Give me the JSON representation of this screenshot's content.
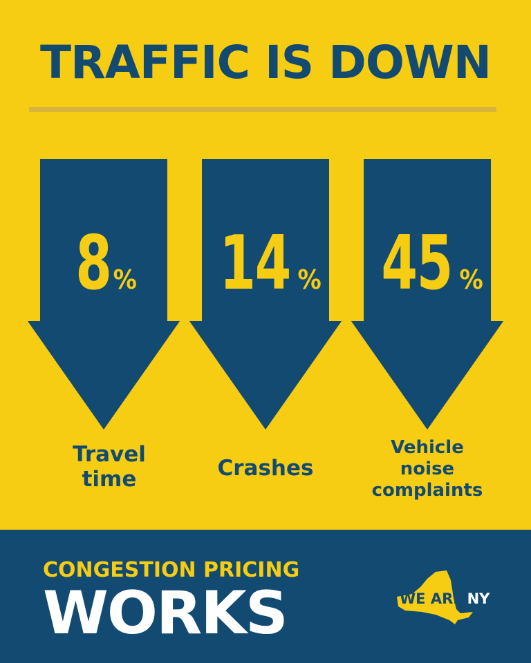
{
  "headline": "TRAFFIC IS DOWN",
  "stats": [
    {
      "value": "8",
      "unit": "%",
      "label_lines": [
        "Travel",
        "time"
      ]
    },
    {
      "value": "14",
      "unit": "%",
      "label_lines": [
        "Crashes"
      ]
    },
    {
      "value": "45",
      "unit": "%",
      "label_lines": [
        "Vehicle",
        "noise",
        "complaints"
      ]
    }
  ],
  "footer": {
    "line1": "CONGESTION PRICING",
    "line2": "WORKS",
    "logo_we_are": "WE ARE",
    "logo_ny": "NY"
  },
  "colors": {
    "background": "#f6cd12",
    "navy": "#124a72",
    "white": "#ffffff"
  },
  "icons": [
    "down-arrow-icon",
    "new-york-state-icon"
  ]
}
